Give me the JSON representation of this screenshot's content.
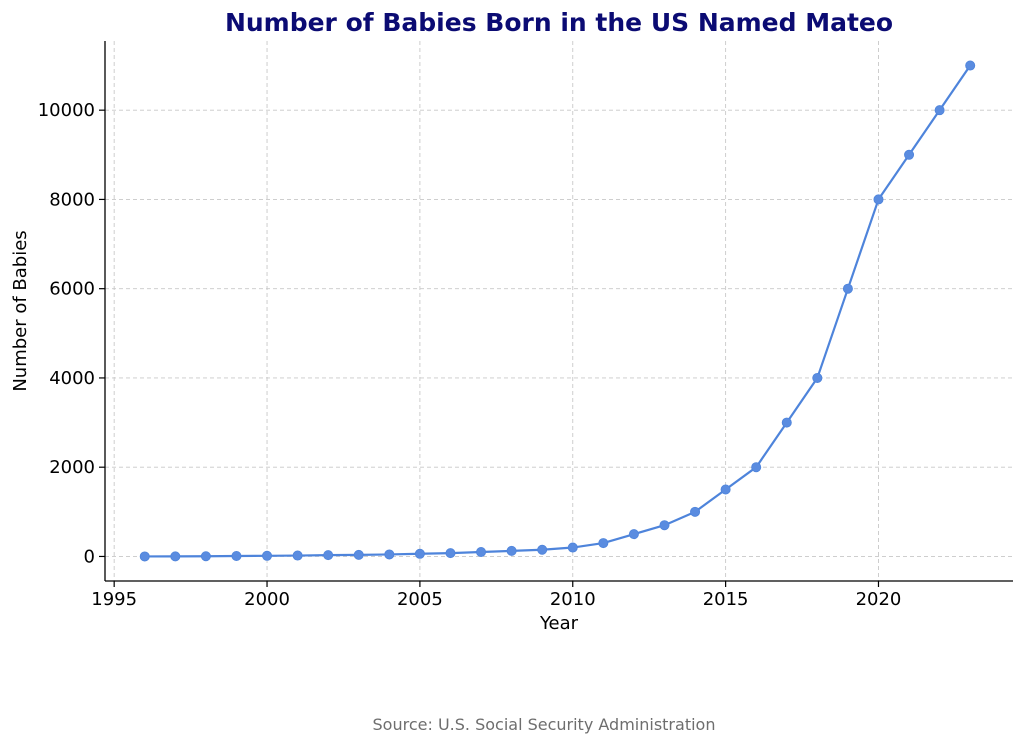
{
  "colors": {
    "title": "#0b0b73",
    "line": "#4e84db",
    "marker": "#5a8ce0",
    "grid": "#c8c8c8",
    "axis": "#000000",
    "source": "#6e6e6e"
  },
  "chart_data": {
    "type": "line",
    "title": "Number of Babies Born in the US Named Mateo",
    "xlabel": "Year",
    "ylabel": "Number of Babies",
    "xlim": [
      1994.7,
      2024.4
    ],
    "ylim": [
      -550,
      11550
    ],
    "xticks": [
      1995,
      2000,
      2005,
      2010,
      2015,
      2020
    ],
    "yticks": [
      0,
      2000,
      4000,
      6000,
      8000,
      10000
    ],
    "grid": true,
    "x": [
      1996,
      1997,
      1998,
      1999,
      2000,
      2001,
      2002,
      2003,
      2004,
      2005,
      2006,
      2007,
      2008,
      2009,
      2010,
      2011,
      2012,
      2013,
      2014,
      2015,
      2016,
      2017,
      2018,
      2019,
      2020,
      2021,
      2022,
      2023
    ],
    "series": [
      {
        "name": "Mateo",
        "values": [
          0,
          2,
          5,
          10,
          15,
          20,
          30,
          35,
          45,
          60,
          75,
          100,
          125,
          150,
          200,
          300,
          500,
          700,
          1000,
          1500,
          2000,
          3000,
          4000,
          6000,
          8000,
          9000,
          10000,
          11000
        ]
      }
    ]
  },
  "source": "Source: U.S. Social Security Administration"
}
